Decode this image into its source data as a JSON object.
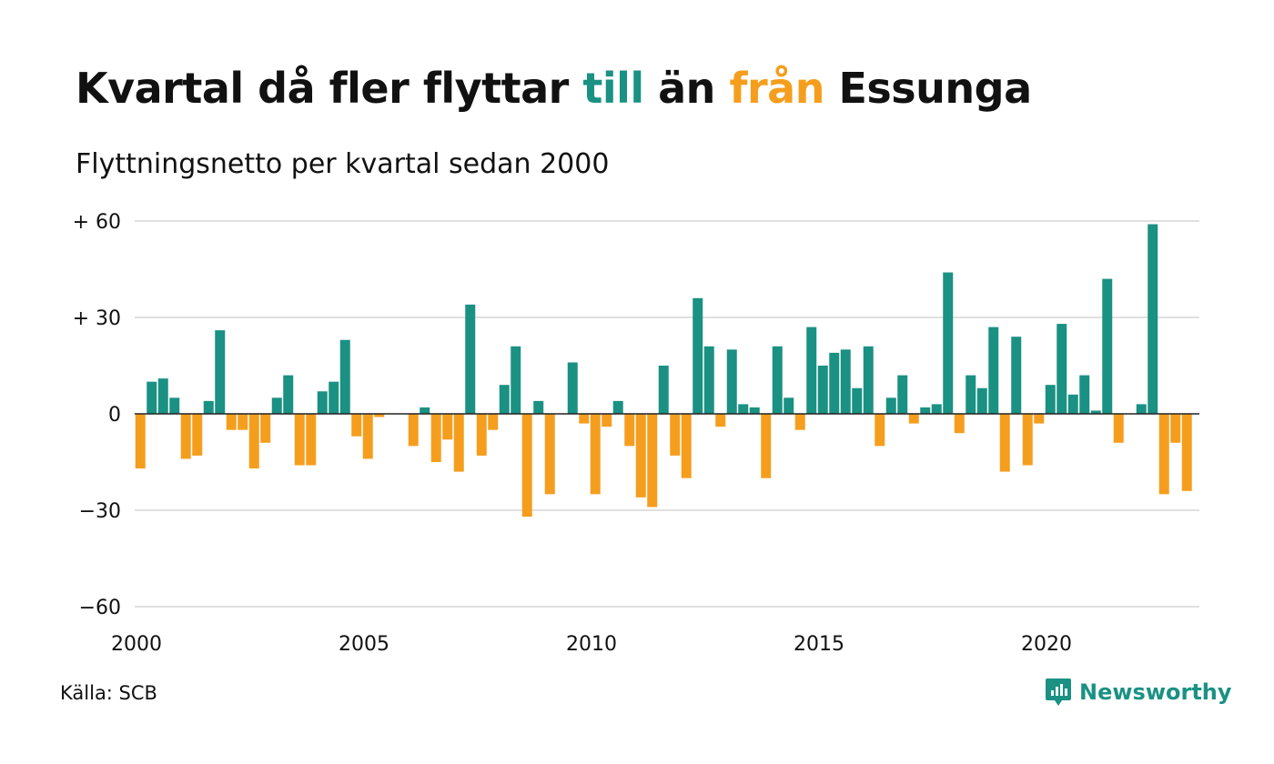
{
  "title": {
    "part1": "Kvartal då fler flyttar ",
    "highlight_in": "till",
    "part2": " än ",
    "highlight_out": "från",
    "part3": " Essunga"
  },
  "subtitle": "Flyttningsnetto per kvartal sedan 2000",
  "source": "Källa: SCB",
  "brand": {
    "name": "Newsworthy",
    "icon": "newsworthy-logo-icon"
  },
  "colors": {
    "positive": "#1a9183",
    "negative": "#f59e1e",
    "grid": "#e0e0e0",
    "zero_line": "#222222"
  },
  "chart_data": {
    "type": "bar",
    "xlabel": "",
    "ylabel": "",
    "ylim": [
      -60,
      60
    ],
    "yticks": [
      {
        "value": 60,
        "label": "+ 60"
      },
      {
        "value": 30,
        "label": "+ 30"
      },
      {
        "value": 0,
        "label": "0"
      },
      {
        "value": -30,
        "label": "−30"
      },
      {
        "value": -60,
        "label": "−60"
      }
    ],
    "xticks": [
      {
        "year": 2000,
        "label": "2000"
      },
      {
        "year": 2005,
        "label": "2005"
      },
      {
        "year": 2010,
        "label": "2010"
      },
      {
        "year": 2015,
        "label": "2015"
      },
      {
        "year": 2020,
        "label": "2020"
      }
    ],
    "grid": true,
    "start_period": "2000 Q1",
    "categories": [
      "2000 Q1",
      "2000 Q2",
      "2000 Q3",
      "2000 Q4",
      "2001 Q1",
      "2001 Q2",
      "2001 Q3",
      "2001 Q4",
      "2002 Q1",
      "2002 Q2",
      "2002 Q3",
      "2002 Q4",
      "2003 Q1",
      "2003 Q2",
      "2003 Q3",
      "2003 Q4",
      "2004 Q1",
      "2004 Q2",
      "2004 Q3",
      "2004 Q4",
      "2005 Q1",
      "2005 Q2",
      "2005 Q3",
      "2005 Q4",
      "2006 Q1",
      "2006 Q2",
      "2006 Q3",
      "2006 Q4",
      "2007 Q1",
      "2007 Q2",
      "2007 Q3",
      "2007 Q4",
      "2008 Q1",
      "2008 Q2",
      "2008 Q3",
      "2008 Q4",
      "2009 Q1",
      "2009 Q2",
      "2009 Q3",
      "2009 Q4",
      "2010 Q1",
      "2010 Q2",
      "2010 Q3",
      "2010 Q4",
      "2011 Q1",
      "2011 Q2",
      "2011 Q3",
      "2011 Q4",
      "2012 Q1",
      "2012 Q2",
      "2012 Q3",
      "2012 Q4",
      "2013 Q1",
      "2013 Q2",
      "2013 Q3",
      "2013 Q4",
      "2014 Q1",
      "2014 Q2",
      "2014 Q3",
      "2014 Q4",
      "2015 Q1",
      "2015 Q2",
      "2015 Q3",
      "2015 Q4",
      "2016 Q1",
      "2016 Q2",
      "2016 Q3",
      "2016 Q4",
      "2017 Q1",
      "2017 Q2",
      "2017 Q3",
      "2017 Q4",
      "2018 Q1",
      "2018 Q2",
      "2018 Q3",
      "2018 Q4",
      "2019 Q1",
      "2019 Q2",
      "2019 Q3",
      "2019 Q4",
      "2020 Q1",
      "2020 Q2",
      "2020 Q3",
      "2020 Q4",
      "2021 Q1",
      "2021 Q2",
      "2021 Q3",
      "2021 Q4",
      "2022 Q1",
      "2022 Q2",
      "2022 Q3",
      "2022 Q4",
      "2023 Q1",
      "2023 Q2"
    ],
    "values": [
      -17,
      10,
      11,
      5,
      -14,
      -13,
      4,
      26,
      -5,
      -5,
      -17,
      -9,
      5,
      12,
      -16,
      -16,
      7,
      10,
      23,
      -7,
      -14,
      -1,
      0,
      0,
      -10,
      2,
      -15,
      -8,
      -18,
      34,
      -13,
      -5,
      9,
      21,
      -32,
      4,
      -25,
      0,
      16,
      -3,
      -25,
      -4,
      4,
      -10,
      -26,
      -29,
      15,
      -13,
      -20,
      36,
      21,
      -4,
      20,
      3,
      2,
      -20,
      21,
      5,
      -5,
      27,
      15,
      19,
      20,
      8,
      21,
      -10,
      5,
      12,
      -3,
      2,
      3,
      44,
      -6,
      12,
      8,
      27,
      -18,
      24,
      -16,
      -3,
      9,
      28,
      6,
      12,
      1,
      42,
      -9,
      0,
      3,
      59,
      -25,
      -9,
      -24,
      0
    ]
  }
}
